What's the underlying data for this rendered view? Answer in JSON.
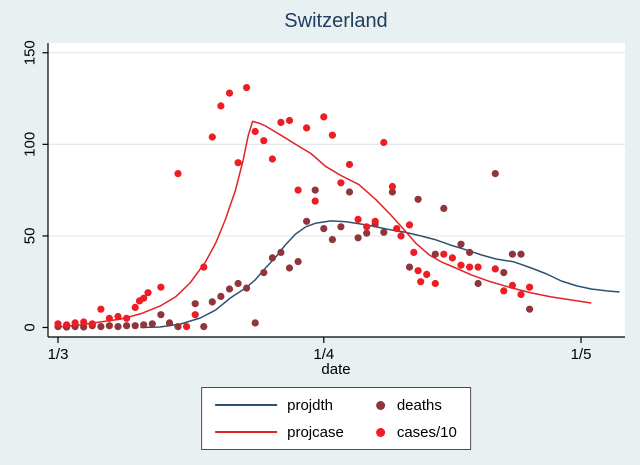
{
  "title": "Switzerland",
  "colors": {
    "background": "#e9f0f2",
    "plot_bg": "#ffffff",
    "grid": "#e4e8ea",
    "axis": "#000000",
    "title_text": "#1d3c5e",
    "navy": "#2b5273",
    "red": "#e32127",
    "red_dot": "#ee1c23",
    "maroon": "#90353b",
    "legend_border": "#4d4d4d"
  },
  "chart_data": {
    "type": "line+scatter",
    "title": "Switzerland",
    "xlabel": "date",
    "x_axis_note": "days since March 1",
    "x_ticks": [
      {
        "day": 0,
        "label": "1/3"
      },
      {
        "day": 31,
        "label": "1/4"
      },
      {
        "day": 61,
        "label": "1/5"
      }
    ],
    "y_ticks": [
      0,
      50,
      100,
      150
    ],
    "ylim": [
      0,
      155
    ],
    "xlim": [
      -1.2,
      66.3
    ],
    "grid": "horizontal",
    "legend_position": "bottom",
    "series": [
      {
        "name": "projdth",
        "type": "line",
        "color": "#2b5273",
        "points": [
          [
            9.6,
            0
          ],
          [
            11.9,
            0.3
          ],
          [
            14.3,
            1.9
          ],
          [
            16.6,
            5.2
          ],
          [
            18.4,
            9.6
          ],
          [
            20.1,
            16.1
          ],
          [
            21.9,
            21.6
          ],
          [
            23,
            26
          ],
          [
            24.2,
            32.5
          ],
          [
            25.4,
            38.5
          ],
          [
            26.5,
            45
          ],
          [
            27.7,
            51
          ],
          [
            28.9,
            55
          ],
          [
            30.1,
            57
          ],
          [
            31.8,
            58.2
          ],
          [
            33.6,
            57.7
          ],
          [
            35.3,
            56.5
          ],
          [
            37.1,
            55
          ],
          [
            38.8,
            53.3
          ],
          [
            40.3,
            52.2
          ],
          [
            42.3,
            50
          ],
          [
            44.1,
            47.8
          ],
          [
            45.8,
            45
          ],
          [
            47.6,
            42.4
          ],
          [
            49.4,
            39.6
          ],
          [
            51.1,
            37.4
          ],
          [
            53.2,
            35.8
          ],
          [
            55.2,
            32.5
          ],
          [
            57,
            29.2
          ],
          [
            58.7,
            25.4
          ],
          [
            60.5,
            22.7
          ],
          [
            62.2,
            21
          ],
          [
            64,
            20
          ],
          [
            65.5,
            19.4
          ]
        ]
      },
      {
        "name": "projcase",
        "type": "line",
        "color": "#e32127",
        "points": [
          [
            0,
            0.3
          ],
          [
            2.6,
            1.4
          ],
          [
            4.9,
            3
          ],
          [
            7.3,
            4.6
          ],
          [
            9.6,
            7.4
          ],
          [
            11.9,
            11.7
          ],
          [
            13.7,
            16.7
          ],
          [
            15.4,
            24.3
          ],
          [
            17.2,
            35.8
          ],
          [
            18.4,
            46.2
          ],
          [
            19.5,
            58.7
          ],
          [
            20.7,
            75
          ],
          [
            21.6,
            91.5
          ],
          [
            22.2,
            105
          ],
          [
            22.7,
            112.5
          ],
          [
            23.5,
            111.5
          ],
          [
            24.2,
            110
          ],
          [
            26,
            105
          ],
          [
            27.7,
            100
          ],
          [
            29.5,
            95
          ],
          [
            31.2,
            88
          ],
          [
            33,
            83
          ],
          [
            35.1,
            78
          ],
          [
            37.1,
            69.7
          ],
          [
            38.8,
            61.5
          ],
          [
            40.3,
            53.8
          ],
          [
            41.7,
            46.2
          ],
          [
            43.3,
            39.6
          ],
          [
            44.7,
            35.8
          ],
          [
            46.4,
            32.5
          ],
          [
            48.2,
            28.7
          ],
          [
            50.5,
            24.9
          ],
          [
            52.9,
            21.6
          ],
          [
            55.2,
            18.9
          ],
          [
            57.5,
            16.7
          ],
          [
            59.9,
            15
          ],
          [
            62.2,
            13.4
          ]
        ]
      },
      {
        "name": "deaths",
        "type": "scatter",
        "color": "#90353b",
        "points": [
          [
            0,
            0.5
          ],
          [
            1,
            0.2
          ],
          [
            2,
            0.5
          ],
          [
            3,
            0.3
          ],
          [
            4,
            1
          ],
          [
            5,
            0.5
          ],
          [
            6,
            1
          ],
          [
            7,
            0.5
          ],
          [
            8,
            1
          ],
          [
            9,
            1
          ],
          [
            10,
            1.5
          ],
          [
            11,
            2
          ],
          [
            12,
            7
          ],
          [
            13,
            2.5
          ],
          [
            14,
            0.5
          ],
          [
            16,
            13
          ],
          [
            17,
            0.5
          ],
          [
            18,
            14
          ],
          [
            19,
            17
          ],
          [
            20,
            21
          ],
          [
            21,
            24
          ],
          [
            22,
            21.5
          ],
          [
            23,
            2.5
          ],
          [
            24,
            30
          ],
          [
            25,
            38
          ],
          [
            26,
            41
          ],
          [
            27,
            32.5
          ],
          [
            28,
            36
          ],
          [
            29,
            58
          ],
          [
            30,
            75
          ],
          [
            31,
            54
          ],
          [
            32,
            48
          ],
          [
            33,
            55
          ],
          [
            34,
            74
          ],
          [
            35,
            49
          ],
          [
            36,
            51.5
          ],
          [
            37,
            56.5
          ],
          [
            38,
            52
          ],
          [
            39,
            74
          ],
          [
            41,
            33
          ],
          [
            42,
            70
          ],
          [
            44,
            40
          ],
          [
            45,
            65
          ],
          [
            47,
            45.5
          ],
          [
            48,
            41
          ],
          [
            49,
            24
          ],
          [
            51,
            84
          ],
          [
            52,
            30
          ],
          [
            53,
            40
          ],
          [
            54,
            40
          ],
          [
            55,
            10
          ]
        ]
      },
      {
        "name": "cases/10",
        "type": "scatter",
        "color": "#ee1c23",
        "points": [
          [
            0,
            2
          ],
          [
            1,
            1.5
          ],
          [
            2,
            2.5
          ],
          [
            3,
            3
          ],
          [
            4,
            2
          ],
          [
            5,
            10
          ],
          [
            6,
            5
          ],
          [
            7,
            6
          ],
          [
            8,
            5
          ],
          [
            9,
            11
          ],
          [
            9.5,
            14.5
          ],
          [
            10,
            16
          ],
          [
            10.5,
            19
          ],
          [
            12,
            22
          ],
          [
            14,
            84
          ],
          [
            15,
            0.5
          ],
          [
            16,
            7
          ],
          [
            17,
            33
          ],
          [
            18,
            104
          ],
          [
            19,
            121
          ],
          [
            20,
            128
          ],
          [
            21,
            90
          ],
          [
            22,
            131
          ],
          [
            23,
            107
          ],
          [
            24,
            102
          ],
          [
            25,
            92
          ],
          [
            26,
            112
          ],
          [
            27,
            113
          ],
          [
            28,
            75
          ],
          [
            29,
            109
          ],
          [
            30,
            69
          ],
          [
            31,
            115
          ],
          [
            32,
            105
          ],
          [
            33,
            79
          ],
          [
            34,
            89
          ],
          [
            35,
            59
          ],
          [
            36,
            55
          ],
          [
            37,
            58
          ],
          [
            38,
            101
          ],
          [
            39,
            77
          ],
          [
            39.5,
            54
          ],
          [
            40,
            50
          ],
          [
            41,
            56
          ],
          [
            41.5,
            41
          ],
          [
            42,
            31
          ],
          [
            42.3,
            25
          ],
          [
            43,
            29
          ],
          [
            44,
            24
          ],
          [
            45,
            40
          ],
          [
            46,
            38
          ],
          [
            47,
            34
          ],
          [
            48,
            33
          ],
          [
            49,
            33
          ],
          [
            51,
            32
          ],
          [
            52,
            20
          ],
          [
            53,
            23
          ],
          [
            54,
            18
          ],
          [
            55,
            22
          ]
        ]
      }
    ]
  },
  "legend": {
    "entries": [
      {
        "label": "projdth",
        "swatch": "line",
        "color": "#2b5273"
      },
      {
        "label": "projcase",
        "swatch": "line",
        "color": "#e32127"
      },
      {
        "label": "deaths",
        "swatch": "dot",
        "color": "#90353b"
      },
      {
        "label": "cases/10",
        "swatch": "dot",
        "color": "#ee1c23"
      }
    ]
  }
}
